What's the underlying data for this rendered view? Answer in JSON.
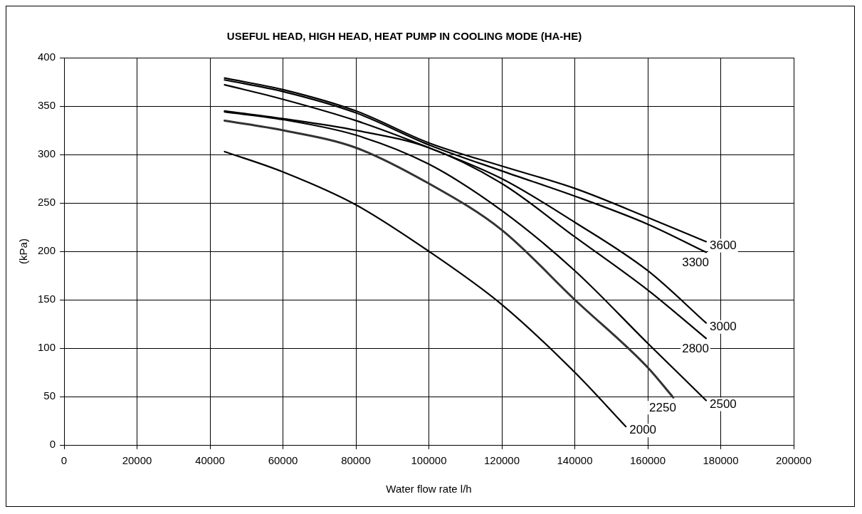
{
  "chart_data": {
    "type": "line",
    "title": "USEFUL HEAD, HIGH HEAD, HEAT PUMP IN COOLING MODE (HA-HE)",
    "xlabel": "Water flow rate l/h",
    "ylabel": "(kPa)",
    "xlim": [
      0,
      200000
    ],
    "xticks": [
      0,
      20000,
      40000,
      60000,
      80000,
      100000,
      120000,
      140000,
      160000,
      180000,
      200000
    ],
    "ylim": [
      0,
      400
    ],
    "yticks": [
      0,
      50,
      100,
      150,
      200,
      250,
      300,
      350,
      400
    ],
    "grid": true,
    "legend": false,
    "marker": "none",
    "line_style": "solid",
    "series": [
      {
        "name": "3600",
        "color": "#000000",
        "x": [
          44000,
          60000,
          80000,
          100000,
          120000,
          140000,
          160000,
          176000
        ],
        "values": [
          379,
          367,
          345,
          312,
          288,
          265,
          235,
          210
        ]
      },
      {
        "name": "3300",
        "color": "#000000",
        "x": [
          44000,
          60000,
          80000,
          100000,
          120000,
          140000,
          160000,
          176000
        ],
        "values": [
          377,
          365,
          343,
          310,
          283,
          257,
          228,
          199
        ]
      },
      {
        "name": "3000",
        "color": "#000000",
        "x": [
          44000,
          60000,
          80000,
          100000,
          120000,
          140000,
          160000,
          176000
        ],
        "values": [
          372,
          357,
          335,
          307,
          275,
          230,
          180,
          126
        ]
      },
      {
        "name": "2800",
        "color": "#000000",
        "x": [
          44000,
          60000,
          80000,
          100000,
          120000,
          140000,
          160000,
          176000
        ],
        "values": [
          345,
          337,
          325,
          307,
          270,
          215,
          160,
          110
        ]
      },
      {
        "name": "2500",
        "color": "#000000",
        "x": [
          44000,
          60000,
          80000,
          100000,
          120000,
          140000,
          160000,
          176000
        ],
        "values": [
          344,
          336,
          320,
          290,
          242,
          180,
          105,
          46
        ]
      },
      {
        "name": "2250",
        "color": "#333333",
        "x": [
          44000,
          60000,
          80000,
          100000,
          120000,
          140000,
          160000,
          167000
        ],
        "values": [
          335,
          325,
          307,
          270,
          222,
          150,
          80,
          49
        ]
      },
      {
        "name": "2000",
        "color": "#000000",
        "x": [
          44000,
          60000,
          80000,
          100000,
          120000,
          140000,
          154000
        ],
        "values": [
          303,
          282,
          248,
          200,
          145,
          75,
          19
        ]
      }
    ]
  }
}
